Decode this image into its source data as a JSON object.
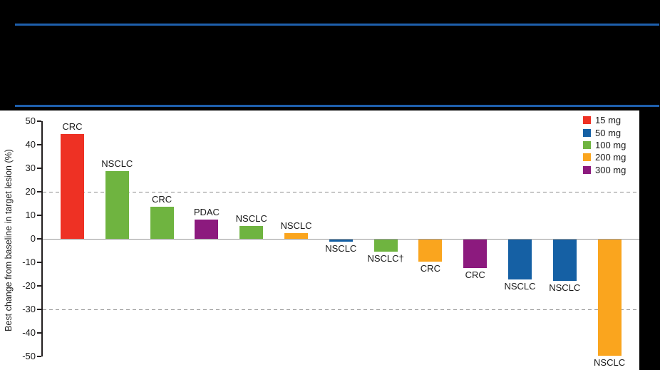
{
  "canvas": {
    "background": "#000000",
    "accent_rule_color": "#1e5fac"
  },
  "chart_data": {
    "type": "bar",
    "title": "",
    "ylabel": "Best change from baseline in target lesion (%)",
    "xlabel": "",
    "ylim": [
      -50,
      50
    ],
    "yticks": [
      50,
      40,
      30,
      20,
      10,
      0,
      -10,
      -20,
      -30,
      -40,
      -50
    ],
    "zero_line": 0,
    "zero_line_color": "#9a9a9a",
    "reference_lines": [
      20,
      -30
    ],
    "reference_line_color": "#8c8c8c",
    "grid": "off",
    "legend_position": "top-right",
    "legend": [
      {
        "label": "15 mg",
        "color": "#ee3124"
      },
      {
        "label": "50 mg",
        "color": "#1560a4"
      },
      {
        "label": "100 mg",
        "color": "#6fb440"
      },
      {
        "label": "200 mg",
        "color": "#faa51e"
      },
      {
        "label": "300 mg",
        "color": "#8c1a7e"
      }
    ],
    "bars": [
      {
        "label": "CRC",
        "dose": "15 mg",
        "value": 44.5
      },
      {
        "label": "NSCLC",
        "dose": "100 mg",
        "value": 28.8
      },
      {
        "label": "CRC",
        "dose": "100 mg",
        "value": 13.5
      },
      {
        "label": "PDAC",
        "dose": "300 mg",
        "value": 8.3
      },
      {
        "label": "NSCLC",
        "dose": "100 mg",
        "value": 5.4
      },
      {
        "label": "NSCLC",
        "dose": "200 mg",
        "value": 2.4
      },
      {
        "label": "NSCLC",
        "dose": "50 mg",
        "value": -0.8
      },
      {
        "label": "NSCLC†",
        "dose": "100 mg",
        "value": -5.1
      },
      {
        "label": "CRC",
        "dose": "200 mg",
        "value": -9.5
      },
      {
        "label": "CRC",
        "dose": "300 mg",
        "value": -12
      },
      {
        "label": "NSCLC",
        "dose": "50 mg",
        "value": -17
      },
      {
        "label": "NSCLC",
        "dose": "50 mg",
        "value": -17.7
      },
      {
        "label": "NSCLC",
        "dose": "200 mg",
        "value": -49.5
      }
    ]
  }
}
